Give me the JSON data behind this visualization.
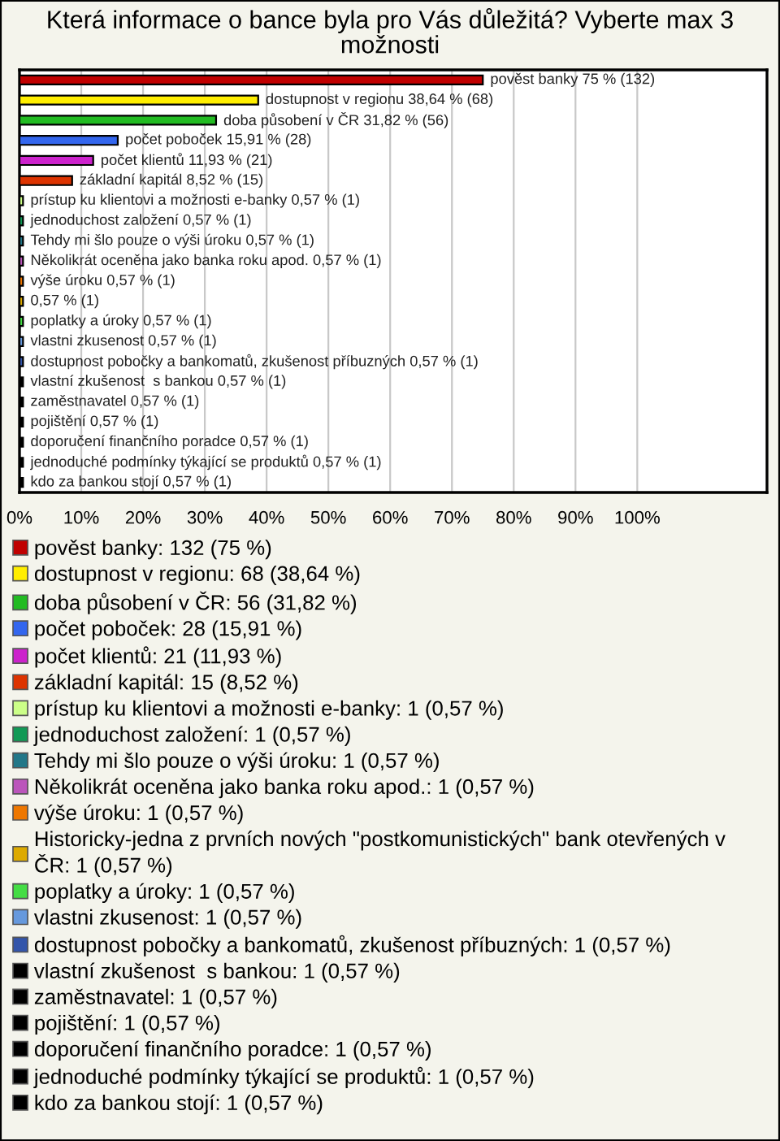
{
  "chart_data": {
    "type": "bar",
    "orientation": "horizontal",
    "title": "Která informace o bance byla pro Vás důležitá? Vyberte max 3 možnosti",
    "categories": [
      null,
      null,
      null,
      null,
      null,
      null,
      null,
      null,
      null,
      null,
      null,
      null,
      null,
      null,
      null,
      null,
      null,
      null,
      null,
      null,
      null
    ],
    "series": [
      {
        "name": "pověst banky: 132 (75 %)",
        "color": "#c00000",
        "values": [
          75,
          null,
          null,
          null,
          null,
          null,
          null,
          null,
          null,
          null,
          null,
          null,
          null,
          null,
          null,
          null,
          null,
          null,
          null,
          null,
          null
        ],
        "value_labels": [
          "pověst banky 75 % (132)",
          null,
          null,
          null,
          null,
          null,
          null,
          null,
          null,
          null,
          null,
          null,
          null,
          null,
          null,
          null,
          null,
          null,
          null,
          null,
          null
        ]
      },
      {
        "name": "dostupnost v regionu: 68 (38,64 %)",
        "color": "#ffee00",
        "values": [
          null,
          38.64,
          null,
          null,
          null,
          null,
          null,
          null,
          null,
          null,
          null,
          null,
          null,
          null,
          null,
          null,
          null,
          null,
          null,
          null,
          null
        ],
        "value_labels": [
          null,
          "dostupnost v regionu 38,64 % (68)",
          null,
          null,
          null,
          null,
          null,
          null,
          null,
          null,
          null,
          null,
          null,
          null,
          null,
          null,
          null,
          null,
          null,
          null,
          null
        ]
      },
      {
        "name": "doba působení v ČR: 56 (31,82 %)",
        "color": "#22bb22",
        "values": [
          null,
          null,
          31.82,
          null,
          null,
          null,
          null,
          null,
          null,
          null,
          null,
          null,
          null,
          null,
          null,
          null,
          null,
          null,
          null,
          null,
          null
        ],
        "value_labels": [
          null,
          null,
          "doba působení v ČR 31,82 % (56)",
          null,
          null,
          null,
          null,
          null,
          null,
          null,
          null,
          null,
          null,
          null,
          null,
          null,
          null,
          null,
          null,
          null,
          null
        ]
      },
      {
        "name": "počet poboček: 28 (15,91 %)",
        "color": "#3366ee",
        "values": [
          null,
          null,
          null,
          15.91,
          null,
          null,
          null,
          null,
          null,
          null,
          null,
          null,
          null,
          null,
          null,
          null,
          null,
          null,
          null,
          null,
          null
        ],
        "value_labels": [
          null,
          null,
          null,
          "počet poboček 15,91 % (28)",
          null,
          null,
          null,
          null,
          null,
          null,
          null,
          null,
          null,
          null,
          null,
          null,
          null,
          null,
          null,
          null,
          null
        ]
      },
      {
        "name": "počet klientů: 21 (11,93 %)",
        "color": "#cc22cc",
        "values": [
          null,
          null,
          null,
          null,
          11.93,
          null,
          null,
          null,
          null,
          null,
          null,
          null,
          null,
          null,
          null,
          null,
          null,
          null,
          null,
          null,
          null
        ],
        "value_labels": [
          null,
          null,
          null,
          null,
          "počet klientů 11,93 % (21)",
          null,
          null,
          null,
          null,
          null,
          null,
          null,
          null,
          null,
          null,
          null,
          null,
          null,
          null,
          null,
          null
        ]
      },
      {
        "name": "základní kapitál: 15 (8,52 %)",
        "color": "#dd3300",
        "values": [
          null,
          null,
          null,
          null,
          null,
          8.52,
          null,
          null,
          null,
          null,
          null,
          null,
          null,
          null,
          null,
          null,
          null,
          null,
          null,
          null,
          null
        ],
        "value_labels": [
          null,
          null,
          null,
          null,
          null,
          "základní kapitál 8,52 % (15)",
          null,
          null,
          null,
          null,
          null,
          null,
          null,
          null,
          null,
          null,
          null,
          null,
          null,
          null,
          null
        ]
      },
      {
        "name": "prístup ku klientovi a možnosti e-banky: 1 (0,57 %)",
        "color": "#ccff88",
        "values": [
          null,
          null,
          null,
          null,
          null,
          null,
          0.57,
          null,
          null,
          null,
          null,
          null,
          null,
          null,
          null,
          null,
          null,
          null,
          null,
          null,
          null
        ],
        "value_labels": [
          null,
          null,
          null,
          null,
          null,
          null,
          "prístup ku klientovi a možnosti e-banky 0,57 % (1)",
          null,
          null,
          null,
          null,
          null,
          null,
          null,
          null,
          null,
          null,
          null,
          null,
          null,
          null
        ]
      },
      {
        "name": "jednoduchost založení: 1 (0,57 %)",
        "color": "#119955",
        "values": [
          null,
          null,
          null,
          null,
          null,
          null,
          null,
          0.57,
          null,
          null,
          null,
          null,
          null,
          null,
          null,
          null,
          null,
          null,
          null,
          null,
          null
        ],
        "value_labels": [
          null,
          null,
          null,
          null,
          null,
          null,
          null,
          "jednoduchost založení 0,57 % (1)",
          null,
          null,
          null,
          null,
          null,
          null,
          null,
          null,
          null,
          null,
          null,
          null,
          null
        ]
      },
      {
        "name": "Tehdy mi šlo pouze o výši úroku: 1 (0,57 %)",
        "color": "#227788",
        "values": [
          null,
          null,
          null,
          null,
          null,
          null,
          null,
          null,
          0.57,
          null,
          null,
          null,
          null,
          null,
          null,
          null,
          null,
          null,
          null,
          null,
          null
        ],
        "value_labels": [
          null,
          null,
          null,
          null,
          null,
          null,
          null,
          null,
          "Tehdy mi šlo pouze o výši úroku 0,57 % (1)",
          null,
          null,
          null,
          null,
          null,
          null,
          null,
          null,
          null,
          null,
          null,
          null
        ]
      },
      {
        "name": "Několikrát oceněna jako banka roku apod.: 1 (0,57 %)",
        "color": "#bb55bb",
        "values": [
          null,
          null,
          null,
          null,
          null,
          null,
          null,
          null,
          null,
          0.57,
          null,
          null,
          null,
          null,
          null,
          null,
          null,
          null,
          null,
          null,
          null
        ],
        "value_labels": [
          null,
          null,
          null,
          null,
          null,
          null,
          null,
          null,
          null,
          "Několikrát oceněna jako banka roku apod. 0,57 % (1)",
          null,
          null,
          null,
          null,
          null,
          null,
          null,
          null,
          null,
          null,
          null
        ]
      },
      {
        "name": "výše úroku: 1 (0,57 %)",
        "color": "#ee7700",
        "values": [
          null,
          null,
          null,
          null,
          null,
          null,
          null,
          null,
          null,
          null,
          0.57,
          null,
          null,
          null,
          null,
          null,
          null,
          null,
          null,
          null,
          null
        ],
        "value_labels": [
          null,
          null,
          null,
          null,
          null,
          null,
          null,
          null,
          null,
          null,
          "výše úroku 0,57 % (1)",
          null,
          null,
          null,
          null,
          null,
          null,
          null,
          null,
          null,
          null
        ]
      },
      {
        "name": "Historicky-jedna z prvních nových \"postkomunistických\" bank otevřených v ČR: 1 (0,57 %)",
        "color": "#ddaa00",
        "values": [
          null,
          null,
          null,
          null,
          null,
          null,
          null,
          null,
          null,
          null,
          null,
          0.57,
          null,
          null,
          null,
          null,
          null,
          null,
          null,
          null,
          null
        ],
        "value_labels": [
          null,
          null,
          null,
          null,
          null,
          null,
          null,
          null,
          null,
          null,
          null,
          "0,57 % (1)",
          null,
          null,
          null,
          null,
          null,
          null,
          null,
          null,
          null
        ]
      },
      {
        "name": "poplatky a úroky: 1 (0,57 %)",
        "color": "#44dd44",
        "values": [
          null,
          null,
          null,
          null,
          null,
          null,
          null,
          null,
          null,
          null,
          null,
          null,
          0.57,
          null,
          null,
          null,
          null,
          null,
          null,
          null,
          null
        ],
        "value_labels": [
          null,
          null,
          null,
          null,
          null,
          null,
          null,
          null,
          null,
          null,
          null,
          null,
          "poplatky a úroky 0,57 % (1)",
          null,
          null,
          null,
          null,
          null,
          null,
          null,
          null
        ]
      },
      {
        "name": "vlastni zkusenost: 1 (0,57 %)",
        "color": "#6699dd",
        "values": [
          null,
          null,
          null,
          null,
          null,
          null,
          null,
          null,
          null,
          null,
          null,
          null,
          null,
          0.57,
          null,
          null,
          null,
          null,
          null,
          null,
          null
        ],
        "value_labels": [
          null,
          null,
          null,
          null,
          null,
          null,
          null,
          null,
          null,
          null,
          null,
          null,
          null,
          "vlastni zkusenost 0,57 % (1)",
          null,
          null,
          null,
          null,
          null,
          null,
          null
        ]
      },
      {
        "name": "dostupnost pobočky a bankomatů, zkušenost příbuzných: 1 (0,57 %)",
        "color": "#3355aa",
        "values": [
          null,
          null,
          null,
          null,
          null,
          null,
          null,
          null,
          null,
          null,
          null,
          null,
          null,
          null,
          0.57,
          null,
          null,
          null,
          null,
          null,
          null
        ],
        "value_labels": [
          null,
          null,
          null,
          null,
          null,
          null,
          null,
          null,
          null,
          null,
          null,
          null,
          null,
          null,
          "dostupnost pobočky a bankomatů, zkušenost příbuzných 0,57 % (1)",
          null,
          null,
          null,
          null,
          null,
          null
        ]
      },
      {
        "name": "vlastní zkušenost  s bankou: 1 (0,57 %)",
        "color": "#000000",
        "values": [
          null,
          null,
          null,
          null,
          null,
          null,
          null,
          null,
          null,
          null,
          null,
          null,
          null,
          null,
          null,
          0.57,
          null,
          null,
          null,
          null,
          null
        ],
        "value_labels": [
          null,
          null,
          null,
          null,
          null,
          null,
          null,
          null,
          null,
          null,
          null,
          null,
          null,
          null,
          null,
          "vlastní zkušenost  s bankou 0,57 % (1)",
          null,
          null,
          null,
          null,
          null
        ]
      },
      {
        "name": "zaměstnavatel: 1 (0,57 %)",
        "color": "#000000",
        "values": [
          null,
          null,
          null,
          null,
          null,
          null,
          null,
          null,
          null,
          null,
          null,
          null,
          null,
          null,
          null,
          null,
          0.57,
          null,
          null,
          null,
          null
        ],
        "value_labels": [
          null,
          null,
          null,
          null,
          null,
          null,
          null,
          null,
          null,
          null,
          null,
          null,
          null,
          null,
          null,
          null,
          "zaměstnavatel 0,57 % (1)",
          null,
          null,
          null,
          null
        ]
      },
      {
        "name": "pojištění: 1 (0,57 %)",
        "color": "#000000",
        "values": [
          null,
          null,
          null,
          null,
          null,
          null,
          null,
          null,
          null,
          null,
          null,
          null,
          null,
          null,
          null,
          null,
          null,
          0.57,
          null,
          null,
          null
        ],
        "value_labels": [
          null,
          null,
          null,
          null,
          null,
          null,
          null,
          null,
          null,
          null,
          null,
          null,
          null,
          null,
          null,
          null,
          null,
          "pojištění 0,57 % (1)",
          null,
          null,
          null
        ]
      },
      {
        "name": "doporučení finančního poradce: 1 (0,57 %)",
        "color": "#000000",
        "values": [
          null,
          null,
          null,
          null,
          null,
          null,
          null,
          null,
          null,
          null,
          null,
          null,
          null,
          null,
          null,
          null,
          null,
          null,
          0.57,
          null,
          null
        ],
        "value_labels": [
          null,
          null,
          null,
          null,
          null,
          null,
          null,
          null,
          null,
          null,
          null,
          null,
          null,
          null,
          null,
          null,
          null,
          null,
          "doporučení finančního poradce 0,57 % (1)",
          null,
          null
        ]
      },
      {
        "name": "jednoduché podmínky týkající se produktů: 1 (0,57 %)",
        "color": "#000000",
        "values": [
          null,
          null,
          null,
          null,
          null,
          null,
          null,
          null,
          null,
          null,
          null,
          null,
          null,
          null,
          null,
          null,
          null,
          null,
          null,
          0.57,
          null
        ],
        "value_labels": [
          null,
          null,
          null,
          null,
          null,
          null,
          null,
          null,
          null,
          null,
          null,
          null,
          null,
          null,
          null,
          null,
          null,
          null,
          null,
          "jednoduché podmínky týkající se produktů 0,57 % (1)",
          null
        ]
      },
      {
        "name": "kdo za bankou stojí: 1 (0,57 %)",
        "color": "#000000",
        "values": [
          null,
          null,
          null,
          null,
          null,
          null,
          null,
          null,
          null,
          null,
          null,
          null,
          null,
          null,
          null,
          null,
          null,
          null,
          null,
          null,
          0.57
        ],
        "value_labels": [
          null,
          null,
          null,
          null,
          null,
          null,
          null,
          null,
          null,
          null,
          null,
          null,
          null,
          null,
          null,
          null,
          null,
          null,
          null,
          null,
          "kdo za bankou stojí 0,57 % (1)"
        ]
      }
    ],
    "xlim": [
      0,
      121
    ],
    "xticks": [
      {
        "value": 0,
        "label": "0%"
      },
      {
        "value": 10,
        "label": "10%"
      },
      {
        "value": 20,
        "label": "20%"
      },
      {
        "value": 30,
        "label": "30%"
      },
      {
        "value": 40,
        "label": "40%"
      },
      {
        "value": 50,
        "label": "50%"
      },
      {
        "value": 60,
        "label": "60%"
      },
      {
        "value": 70,
        "label": "70%"
      },
      {
        "value": 80,
        "label": "80%"
      },
      {
        "value": 90,
        "label": "90%"
      },
      {
        "value": 100,
        "label": "100%"
      }
    ],
    "grid": "x",
    "legend": "bottom",
    "tick_labels": "x"
  }
}
